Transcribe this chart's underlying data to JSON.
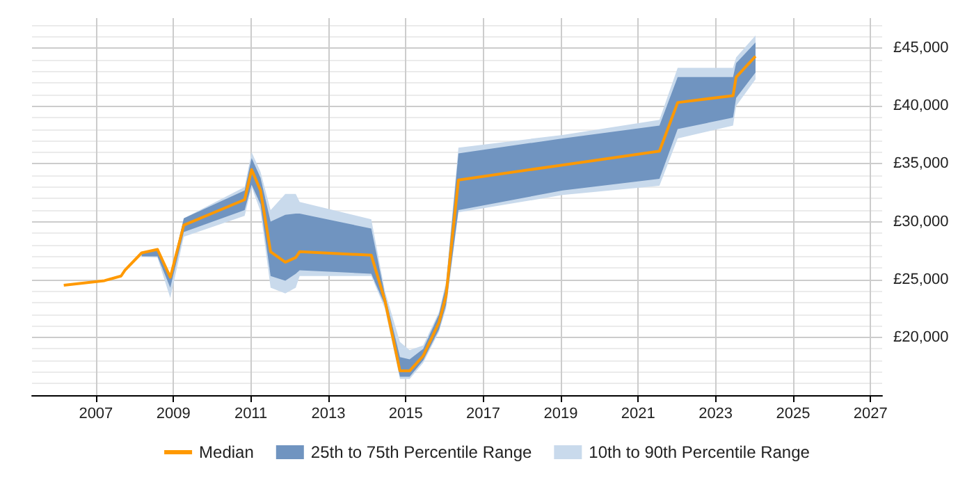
{
  "chart_data": {
    "type": "line",
    "x": [
      2006.17,
      2007.22,
      2007.65,
      2007.75,
      2008.18,
      2008.59,
      2008.92,
      2009.27,
      2010.84,
      2011.02,
      2011.25,
      2011.51,
      2011.89,
      2012.16,
      2012.26,
      2014.11,
      2014.46,
      2014.85,
      2015.1,
      2015.45,
      2015.86,
      2016.04,
      2016.36,
      2019.05,
      2021.55,
      2022.02,
      2023.45,
      2023.53,
      2024.03
    ],
    "series": [
      {
        "name": "Median",
        "color": "#ff9900",
        "values": [
          24500,
          24900,
          25300,
          25800,
          27300,
          27600,
          25200,
          29700,
          31900,
          34500,
          32700,
          27400,
          26500,
          26900,
          27400,
          27100,
          23200,
          17100,
          17100,
          18400,
          21300,
          23600,
          33600,
          34900,
          36100,
          40300,
          40900,
          42500,
          44300
        ]
      },
      {
        "name": "25th to 75th Percentile Range",
        "color": "#7094c0",
        "lower": [
          null,
          null,
          null,
          null,
          27000,
          27000,
          24300,
          29100,
          31000,
          33200,
          31500,
          25300,
          24900,
          25500,
          25800,
          25500,
          22800,
          16600,
          16600,
          18000,
          20700,
          22800,
          31000,
          32700,
          33700,
          38000,
          39000,
          40700,
          42900
        ],
        "values": [
          null,
          null,
          null,
          null,
          null,
          null,
          null,
          null,
          null,
          null,
          null,
          null,
          null,
          null,
          null,
          null,
          null,
          null,
          null,
          null,
          null,
          null,
          null,
          null,
          null,
          null,
          null,
          null,
          null
        ],
        "upper": [
          null,
          null,
          null,
          null,
          27300,
          27600,
          25300,
          30300,
          32700,
          35500,
          33800,
          30000,
          30600,
          30700,
          30700,
          29400,
          23700,
          18300,
          18100,
          19000,
          22000,
          24500,
          35900,
          37200,
          38300,
          42500,
          42500,
          43700,
          45500
        ]
      },
      {
        "name": "10th to 90th Percentile Range",
        "color": "#c9daec",
        "lower": [
          null,
          null,
          null,
          null,
          27000,
          26900,
          23400,
          28700,
          30500,
          33000,
          30900,
          24300,
          23800,
          24300,
          25300,
          25300,
          22500,
          16400,
          16400,
          17800,
          20500,
          22500,
          30800,
          32300,
          33100,
          37200,
          38300,
          40000,
          42300
        ],
        "values": [
          null,
          null,
          null,
          null,
          null,
          null,
          null,
          null,
          null,
          null,
          null,
          null,
          null,
          null,
          null,
          null,
          null,
          null,
          null,
          null,
          null,
          null,
          null,
          null,
          null,
          null,
          null,
          null,
          null
        ],
        "upper": [
          null,
          null,
          null,
          null,
          27300,
          27700,
          25400,
          30300,
          33000,
          36000,
          34300,
          31000,
          32400,
          32400,
          31700,
          30200,
          24000,
          19600,
          18900,
          19300,
          22200,
          24800,
          36400,
          37500,
          38800,
          43300,
          43300,
          44200,
          46100
        ]
      }
    ],
    "xlim": [
      2005.35,
      2027.3
    ],
    "xticks": [
      2007,
      2009,
      2011,
      2013,
      2015,
      2017,
      2019,
      2021,
      2023,
      2025,
      2027
    ],
    "ylim": [
      15000,
      47600
    ],
    "yticks": [
      {
        "value": 16000,
        "label": null
      },
      {
        "value": 17000,
        "label": null
      },
      {
        "value": 18000,
        "label": null
      },
      {
        "value": 19000,
        "label": null
      },
      {
        "value": 20000,
        "label": "£20,000"
      },
      {
        "value": 21000,
        "label": null
      },
      {
        "value": 22000,
        "label": null
      },
      {
        "value": 23000,
        "label": null
      },
      {
        "value": 24000,
        "label": null
      },
      {
        "value": 25000,
        "label": "£25,000"
      },
      {
        "value": 26000,
        "label": null
      },
      {
        "value": 27000,
        "label": null
      },
      {
        "value": 28000,
        "label": null
      },
      {
        "value": 29000,
        "label": null
      },
      {
        "value": 30000,
        "label": "£30,000"
      },
      {
        "value": 31000,
        "label": null
      },
      {
        "value": 32000,
        "label": null
      },
      {
        "value": 33000,
        "label": null
      },
      {
        "value": 34000,
        "label": null
      },
      {
        "value": 35000,
        "label": "£35,000"
      },
      {
        "value": 36000,
        "label": null
      },
      {
        "value": 37000,
        "label": null
      },
      {
        "value": 38000,
        "label": null
      },
      {
        "value": 39000,
        "label": null
      },
      {
        "value": 40000,
        "label": "£40,000"
      },
      {
        "value": 41000,
        "label": null
      },
      {
        "value": 42000,
        "label": null
      },
      {
        "value": 43000,
        "label": null
      },
      {
        "value": 44000,
        "label": null
      },
      {
        "value": 45000,
        "label": "£45,000"
      },
      {
        "value": 46000,
        "label": null
      },
      {
        "value": 47000,
        "label": null
      }
    ],
    "grid": true,
    "legend": "bottom",
    "marker": "none",
    "line_style": "solid"
  }
}
